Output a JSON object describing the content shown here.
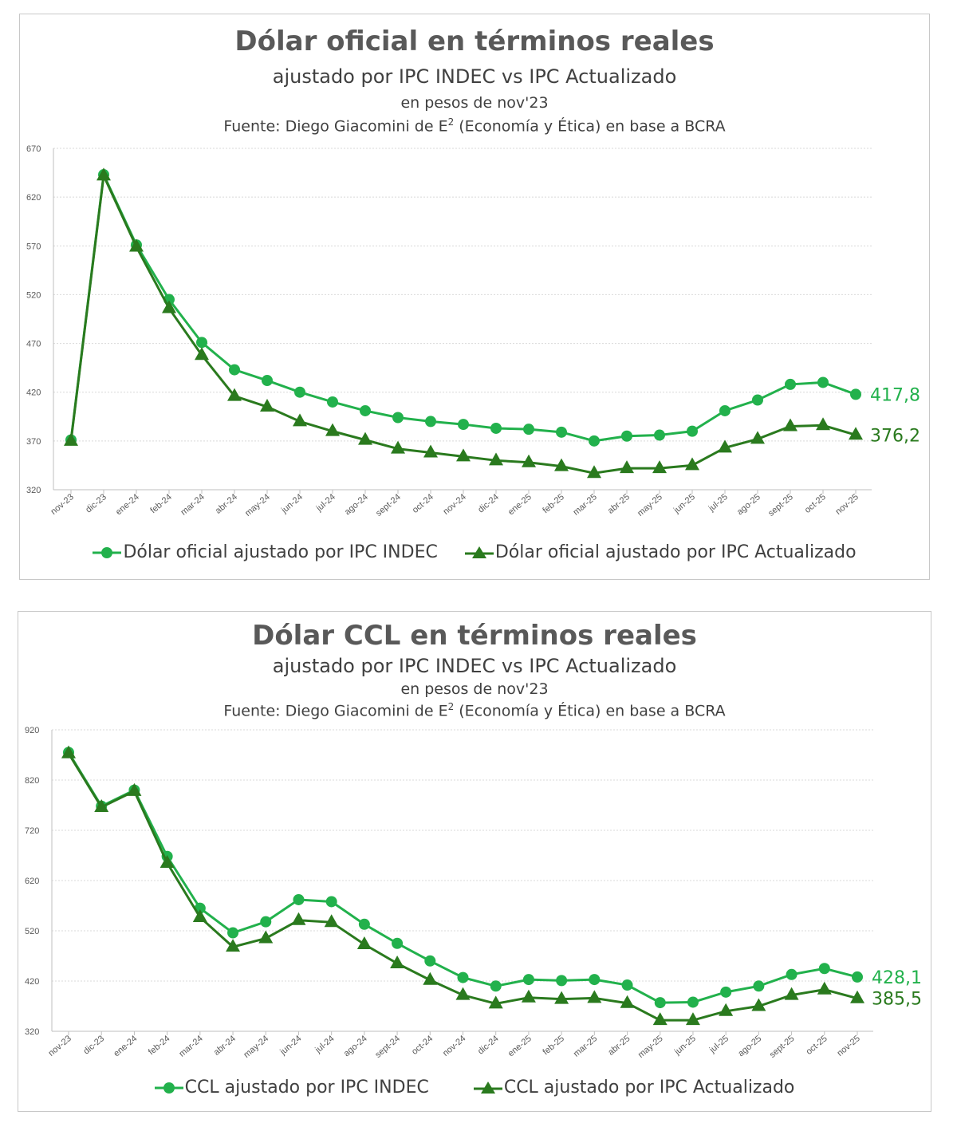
{
  "colors": {
    "indec": "#22b14c",
    "actualizado": "#2a7a1e",
    "grid": "#d9d9d9",
    "axis": "#bfbfbf"
  },
  "charts": [
    {
      "title": "Dólar oficial en términos reales",
      "subtitle": "ajustado por IPC INDEC vs IPC Actualizado",
      "unit_line": "en pesos de nov'23",
      "source_prefix": "Fuente: Diego Giacomini de E",
      "source_sup": "2",
      "source_suffix": " (Economía y Ética) en base a BCRA",
      "legend": [
        "Dólar oficial ajustado por IPC INDEC",
        "Dólar oficial ajustado por IPC Actualizado"
      ],
      "end_labels": [
        "417,8",
        "376,2"
      ],
      "y_ticks": [
        "670",
        "620",
        "570",
        "520",
        "470",
        "420",
        "370",
        "320"
      ]
    },
    {
      "title": "Dólar CCL en términos reales",
      "subtitle": "ajustado por IPC INDEC vs IPC Actualizado",
      "unit_line": "en pesos de nov'23",
      "source_prefix": "Fuente: Diego Giacomini de E",
      "source_sup": "2",
      "source_suffix": " (Economía y Ética) en base a BCRA",
      "legend": [
        "CCL ajustado por IPC INDEC",
        "CCL ajustado por IPC Actualizado"
      ],
      "end_labels": [
        "428,1",
        "385,5"
      ],
      "y_ticks": [
        "920",
        "820",
        "720",
        "620",
        "520",
        "420",
        "320"
      ]
    }
  ],
  "chart_data": [
    {
      "type": "line",
      "title": "Dólar oficial en términos reales",
      "categories": [
        "nov-23",
        "dic-23",
        "ene-24",
        "feb-24",
        "mar-24",
        "abr-24",
        "may-24",
        "jun-24",
        "jul-24",
        "ago-24",
        "sept-24",
        "oct-24",
        "nov-24",
        "dic-24",
        "ene-25",
        "feb-25",
        "mar-25",
        "abr-25",
        "may-25",
        "jun-25",
        "jul-25",
        "ago-25",
        "sept-25",
        "oct-25",
        "nov-25"
      ],
      "ylim": [
        320,
        670
      ],
      "grid": true,
      "legend_position": "bottom",
      "series": [
        {
          "name": "Dólar oficial ajustado por IPC INDEC",
          "marker": "circle",
          "values": [
            371,
            643,
            571,
            515,
            471,
            443,
            432,
            420,
            410,
            401,
            394,
            390,
            387,
            383,
            382,
            379,
            370,
            375,
            376,
            380,
            401,
            412,
            428,
            430,
            417.8
          ]
        },
        {
          "name": "Dólar oficial ajustado por IPC Actualizado",
          "marker": "triangle",
          "values": [
            370,
            642,
            569,
            506,
            458,
            416,
            405,
            390,
            380,
            371,
            362,
            358,
            354,
            350,
            348,
            344,
            337,
            342,
            342,
            345,
            363,
            372,
            385,
            386,
            376.2
          ]
        }
      ]
    },
    {
      "type": "line",
      "title": "Dólar CCL en términos reales",
      "categories": [
        "nov-23",
        "dic-23",
        "ene-24",
        "feb-24",
        "mar-24",
        "abr-24",
        "may-24",
        "jun-24",
        "jul-24",
        "ago-24",
        "sept-24",
        "oct-24",
        "nov-24",
        "dic-24",
        "ene-25",
        "feb-25",
        "mar-25",
        "abr-25",
        "may-25",
        "jun-25",
        "jul-25",
        "ago-25",
        "sept-25",
        "oct-25",
        "nov-25"
      ],
      "ylim": [
        320,
        920
      ],
      "grid": true,
      "legend_position": "bottom",
      "series": [
        {
          "name": "CCL ajustado por IPC INDEC",
          "marker": "circle",
          "values": [
            875,
            768,
            800,
            668,
            565,
            516,
            538,
            582,
            578,
            533,
            495,
            460,
            427,
            410,
            423,
            421,
            423,
            412,
            377,
            378,
            398,
            410,
            433,
            445,
            428.1
          ]
        },
        {
          "name": "CCL ajustado por IPC Actualizado",
          "marker": "triangle",
          "values": [
            873,
            766,
            798,
            655,
            547,
            488,
            505,
            541,
            537,
            493,
            455,
            422,
            392,
            375,
            387,
            384,
            386,
            376,
            342,
            342,
            360,
            370,
            392,
            403,
            385.5
          ]
        }
      ]
    }
  ]
}
